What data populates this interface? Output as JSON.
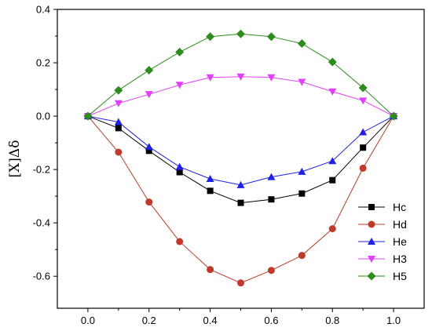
{
  "chart_data": {
    "type": "line",
    "xlabel": "",
    "ylabel": "[X]Δδ",
    "xlim": [
      -0.1,
      1.1
    ],
    "ylim": [
      -0.72,
      0.4
    ],
    "x_ticks": [
      "0.0",
      "0.2",
      "0.4",
      "0.6",
      "0.8",
      "1.0"
    ],
    "x_tick_values": [
      0.0,
      0.2,
      0.4,
      0.6,
      0.8,
      1.0
    ],
    "y_ticks": [
      "0.4",
      "0.2",
      "0.0",
      "-0.2",
      "-0.4",
      "-0.6"
    ],
    "y_tick_values": [
      0.4,
      0.2,
      0.0,
      -0.2,
      -0.4,
      -0.6
    ],
    "grid": false,
    "legend_position": "bottom-right",
    "x": [
      0.0,
      0.1,
      0.2,
      0.3,
      0.4,
      0.5,
      0.6,
      0.7,
      0.8,
      0.9,
      1.0
    ],
    "series": [
      {
        "name": "Hc",
        "marker": "square",
        "color": "#000000",
        "values": [
          0.0,
          -0.045,
          -0.13,
          -0.21,
          -0.28,
          -0.325,
          -0.312,
          -0.29,
          -0.24,
          -0.118,
          0.0
        ]
      },
      {
        "name": "Hd",
        "marker": "circle",
        "color": "#c0392b",
        "values": [
          0.0,
          -0.135,
          -0.322,
          -0.47,
          -0.575,
          -0.625,
          -0.578,
          -0.522,
          -0.422,
          -0.195,
          0.0
        ]
      },
      {
        "name": "He",
        "marker": "triangle-up",
        "color": "#1f1fe6",
        "values": [
          0.0,
          -0.022,
          -0.115,
          -0.19,
          -0.235,
          -0.258,
          -0.228,
          -0.208,
          -0.168,
          -0.06,
          0.0
        ]
      },
      {
        "name": "H3",
        "marker": "triangle-down",
        "color": "#e040fb",
        "values": [
          0.0,
          0.048,
          0.082,
          0.117,
          0.145,
          0.148,
          0.145,
          0.128,
          0.092,
          0.058,
          0.0
        ]
      },
      {
        "name": "H5",
        "marker": "diamond",
        "color": "#2e8b1e",
        "values": [
          0.0,
          0.097,
          0.172,
          0.24,
          0.298,
          0.308,
          0.298,
          0.272,
          0.203,
          0.106,
          0.0
        ]
      }
    ]
  }
}
